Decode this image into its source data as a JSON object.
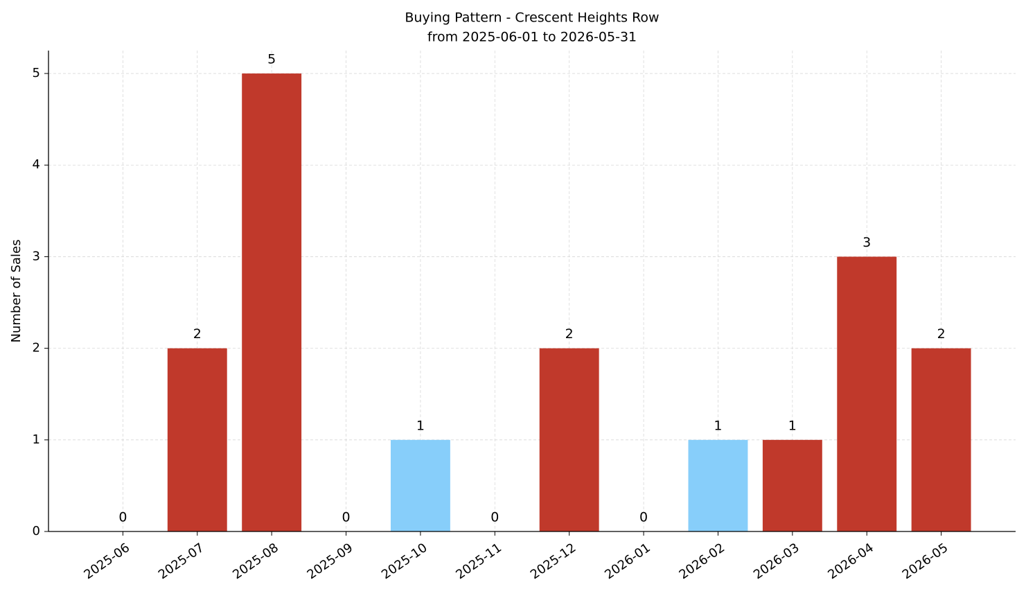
{
  "chart_data": {
    "type": "bar",
    "title": "Buying Pattern - Crescent Heights Row",
    "subtitle": "from 2025-06-01 to 2026-05-31",
    "y_label": "Number of Sales",
    "categories": [
      "2025-06",
      "2025-07",
      "2025-08",
      "2025-09",
      "2025-10",
      "2025-11",
      "2025-12",
      "2026-01",
      "2026-02",
      "2026-03",
      "2026-04",
      "2026-05"
    ],
    "values": [
      0,
      2,
      5,
      0,
      1,
      0,
      2,
      0,
      1,
      1,
      3,
      2
    ],
    "colors": [
      "#c0392b",
      "#c0392b",
      "#c0392b",
      "#c0392b",
      "#87cefa",
      "#c0392b",
      "#c0392b",
      "#c0392b",
      "#87cefa",
      "#c0392b",
      "#c0392b",
      "#c0392b"
    ],
    "ylim": [
      0,
      5.25
    ],
    "yticks": [
      0,
      1,
      2,
      3,
      4,
      5
    ],
    "grid": true
  }
}
